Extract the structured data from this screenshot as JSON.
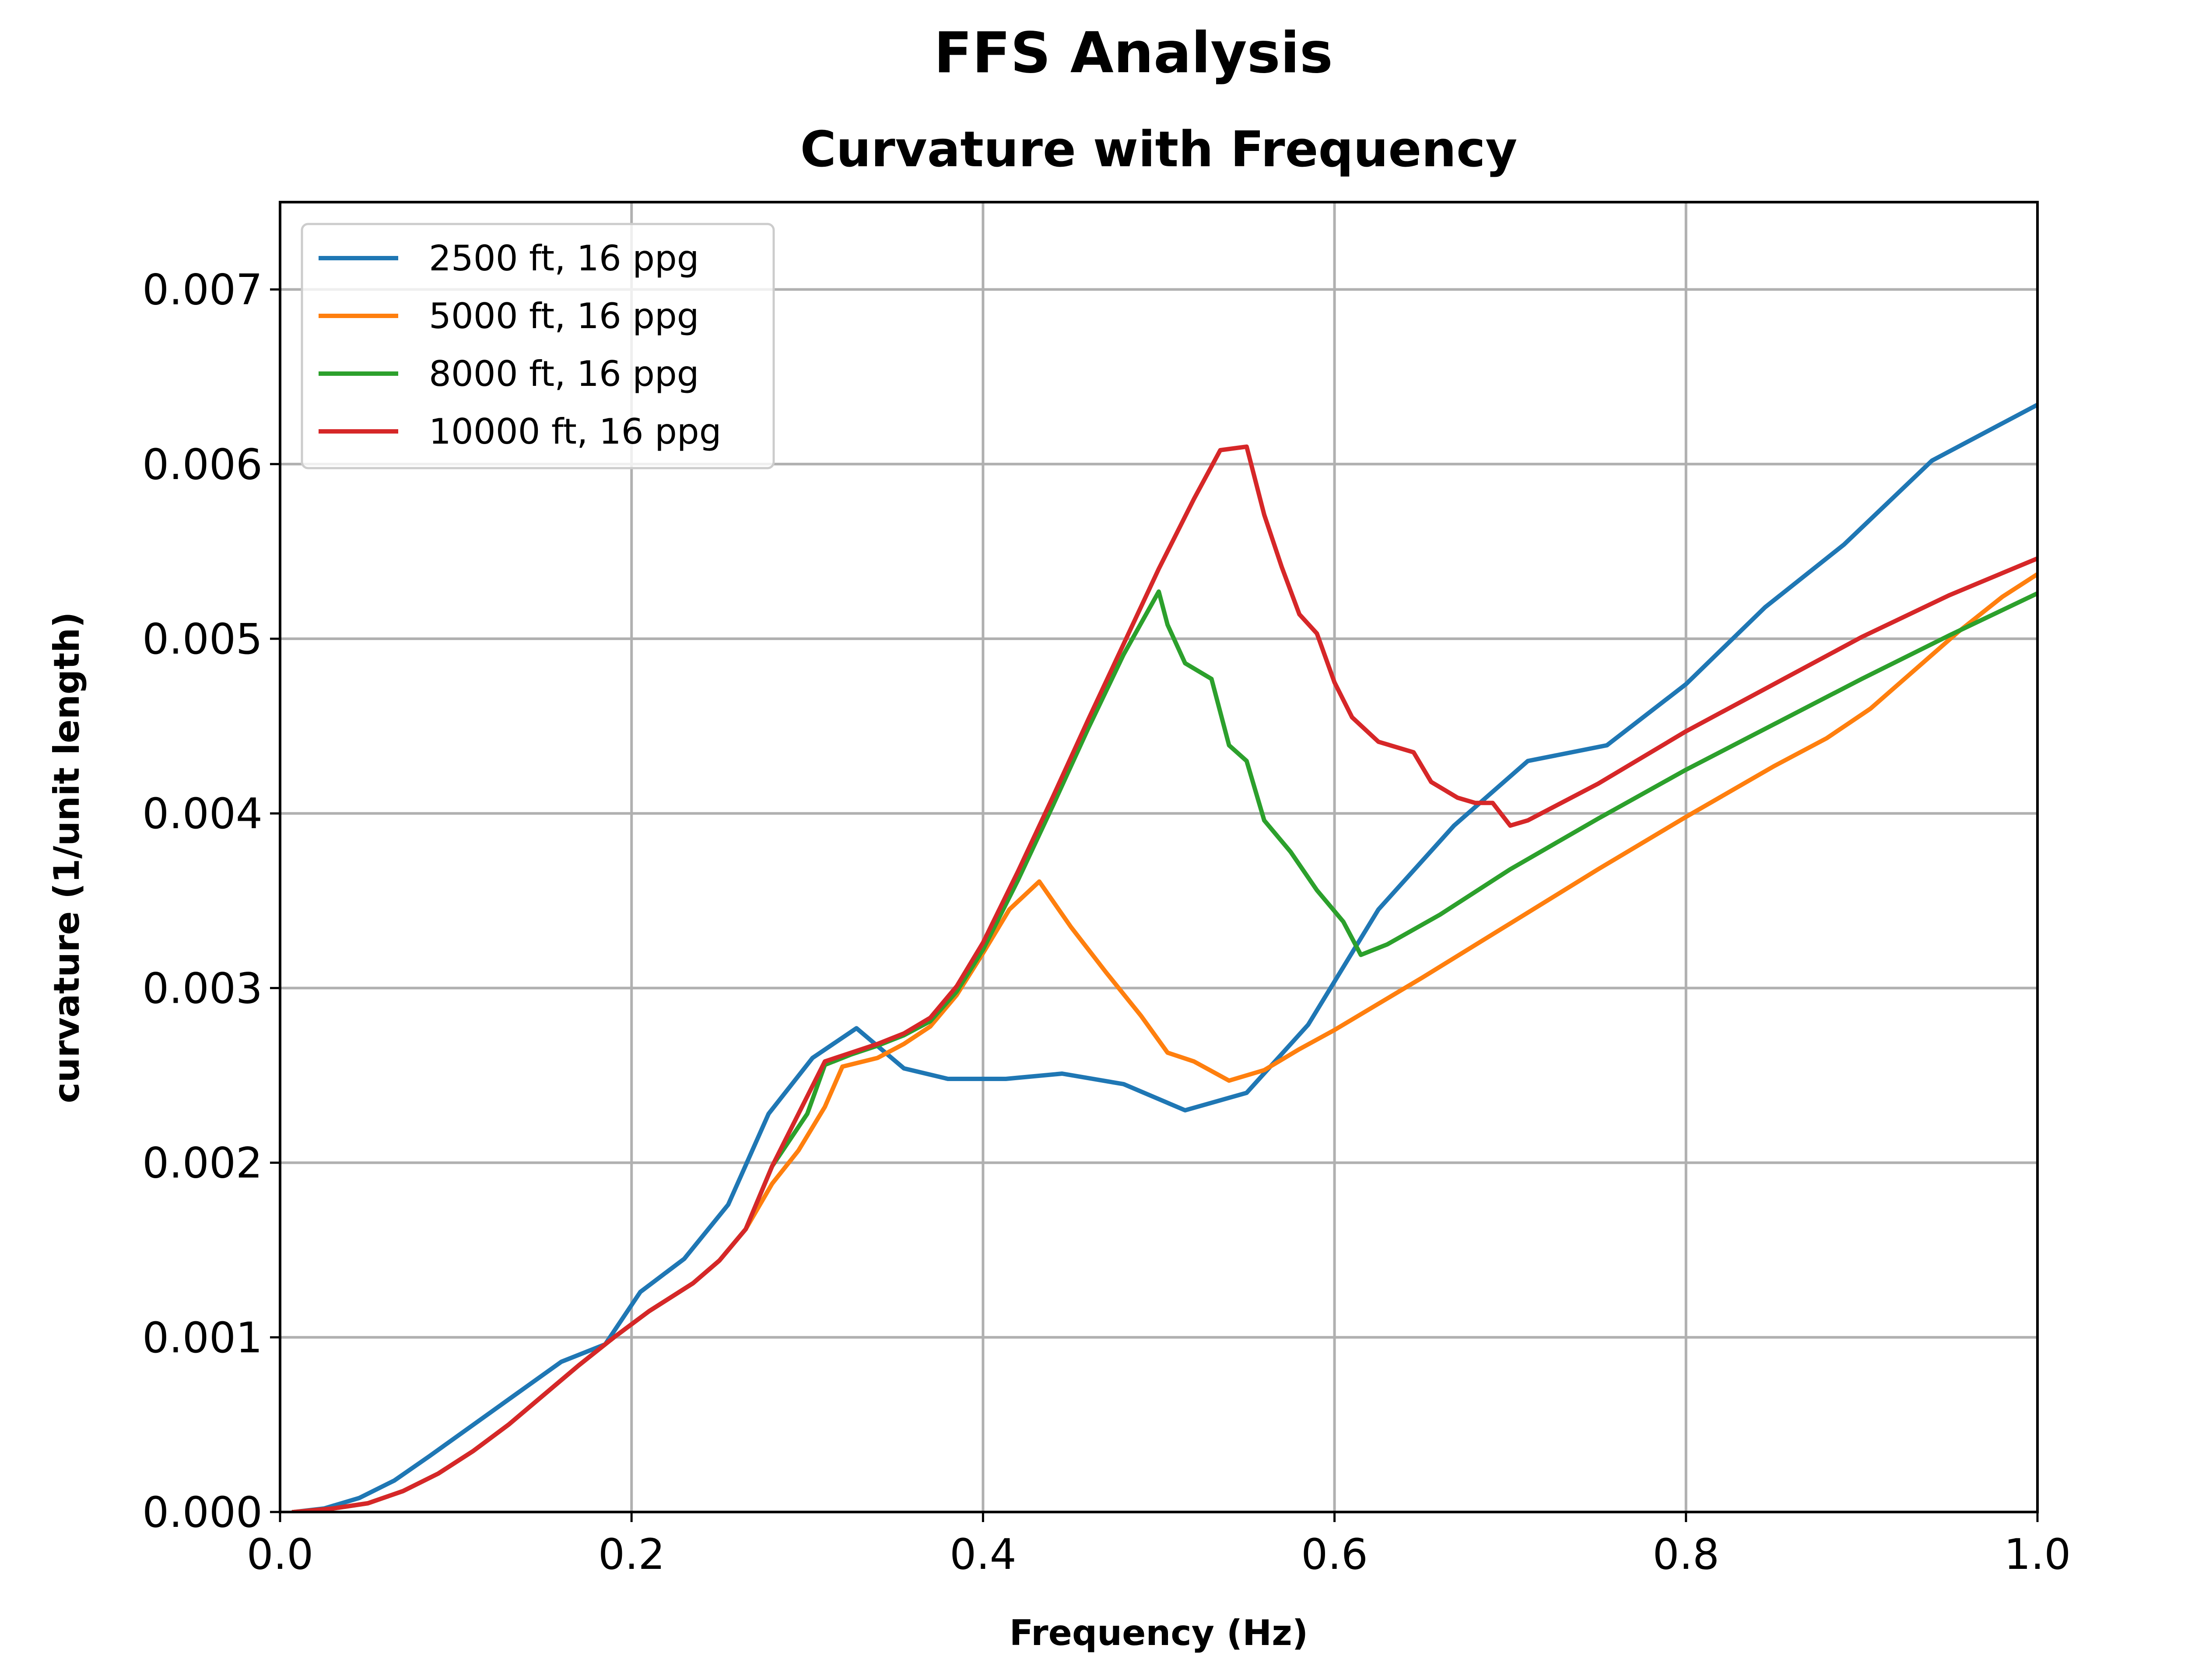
{
  "chart_data": {
    "type": "line",
    "suptitle": "FFS Analysis",
    "title": "Curvature with Frequency",
    "xlabel": "Frequency (Hz)",
    "ylabel": "curvature (1/unit length)",
    "xlim": [
      0.0,
      1.0
    ],
    "ylim": [
      0.0,
      0.0075
    ],
    "xticks": [
      "0.0",
      "0.2",
      "0.4",
      "0.6",
      "0.8",
      "1.0"
    ],
    "yticks": [
      "0.000",
      "0.001",
      "0.002",
      "0.003",
      "0.004",
      "0.005",
      "0.006",
      "0.007"
    ],
    "grid": true,
    "legend_position": "top-left",
    "series": [
      {
        "name": "2500 ft, 16 ppg",
        "color": "#1f77b4",
        "x": [
          0.008,
          0.025,
          0.045,
          0.065,
          0.085,
          0.11,
          0.135,
          0.16,
          0.185,
          0.205,
          0.23,
          0.255,
          0.278,
          0.303,
          0.328,
          0.355,
          0.38,
          0.413,
          0.445,
          0.48,
          0.515,
          0.55,
          0.585,
          0.625,
          0.668,
          0.71,
          0.755,
          0.8,
          0.845,
          0.89,
          0.94,
          1.0
        ],
        "y": [
          0.0,
          2e-05,
          8e-05,
          0.00018,
          0.00032,
          0.0005,
          0.00068,
          0.00086,
          0.00096,
          0.00126,
          0.00145,
          0.00176,
          0.00228,
          0.0026,
          0.00277,
          0.00254,
          0.00248,
          0.00248,
          0.00251,
          0.00245,
          0.0023,
          0.0024,
          0.00279,
          0.00345,
          0.00393,
          0.0043,
          0.00439,
          0.00474,
          0.00518,
          0.00554,
          0.00602,
          0.00634
        ]
      },
      {
        "name": "5000 ft, 16 ppg",
        "color": "#ff7f0e",
        "x": [
          0.008,
          0.03,
          0.05,
          0.07,
          0.09,
          0.11,
          0.13,
          0.15,
          0.17,
          0.19,
          0.21,
          0.235,
          0.25,
          0.265,
          0.28,
          0.295,
          0.31,
          0.32,
          0.34,
          0.355,
          0.37,
          0.385,
          0.4,
          0.415,
          0.432,
          0.45,
          0.47,
          0.49,
          0.505,
          0.52,
          0.54,
          0.56,
          0.58,
          0.6,
          0.65,
          0.7,
          0.75,
          0.8,
          0.85,
          0.88,
          0.905,
          0.93,
          0.955,
          0.98,
          1.0
        ],
        "y": [
          0.0,
          2e-05,
          5e-05,
          0.00012,
          0.00022,
          0.00035,
          0.0005,
          0.00067,
          0.00084,
          0.001,
          0.00115,
          0.00131,
          0.00144,
          0.00162,
          0.00188,
          0.00207,
          0.00232,
          0.00255,
          0.0026,
          0.00268,
          0.00278,
          0.00296,
          0.0032,
          0.00345,
          0.00361,
          0.00335,
          0.00309,
          0.00284,
          0.00263,
          0.00258,
          0.00247,
          0.00253,
          0.00265,
          0.00276,
          0.00306,
          0.00337,
          0.00368,
          0.00398,
          0.00427,
          0.00443,
          0.0046,
          0.00482,
          0.00504,
          0.00524,
          0.00537
        ]
      },
      {
        "name": "8000 ft, 16 ppg",
        "color": "#2ca02c",
        "x": [
          0.008,
          0.03,
          0.05,
          0.07,
          0.09,
          0.11,
          0.13,
          0.15,
          0.17,
          0.19,
          0.21,
          0.235,
          0.25,
          0.265,
          0.28,
          0.3,
          0.31,
          0.325,
          0.34,
          0.355,
          0.37,
          0.385,
          0.4,
          0.42,
          0.44,
          0.46,
          0.48,
          0.5,
          0.505,
          0.515,
          0.53,
          0.54,
          0.55,
          0.56,
          0.575,
          0.59,
          0.605,
          0.615,
          0.63,
          0.66,
          0.7,
          0.75,
          0.8,
          0.85,
          0.9,
          0.95,
          1.0
        ],
        "y": [
          0.0,
          2e-05,
          5e-05,
          0.00012,
          0.00022,
          0.00035,
          0.0005,
          0.00067,
          0.00084,
          0.001,
          0.00115,
          0.00131,
          0.00144,
          0.00162,
          0.00198,
          0.00228,
          0.00256,
          0.00262,
          0.00267,
          0.00273,
          0.00281,
          0.00298,
          0.00322,
          0.00362,
          0.00405,
          0.00449,
          0.00491,
          0.00527,
          0.00508,
          0.00486,
          0.00477,
          0.00439,
          0.0043,
          0.00396,
          0.00378,
          0.00356,
          0.00338,
          0.00319,
          0.00325,
          0.00342,
          0.00368,
          0.00397,
          0.00425,
          0.00451,
          0.00477,
          0.00502,
          0.00526
        ]
      },
      {
        "name": "10000 ft, 16 ppg",
        "color": "#d62728",
        "x": [
          0.008,
          0.03,
          0.05,
          0.07,
          0.09,
          0.11,
          0.13,
          0.15,
          0.17,
          0.19,
          0.21,
          0.235,
          0.25,
          0.265,
          0.28,
          0.3,
          0.31,
          0.325,
          0.34,
          0.355,
          0.37,
          0.385,
          0.4,
          0.42,
          0.44,
          0.46,
          0.48,
          0.5,
          0.52,
          0.535,
          0.55,
          0.56,
          0.57,
          0.58,
          0.59,
          0.6,
          0.61,
          0.625,
          0.645,
          0.655,
          0.67,
          0.68,
          0.69,
          0.7,
          0.71,
          0.75,
          0.8,
          0.85,
          0.9,
          0.95,
          1.0
        ],
        "y": [
          0.0,
          2e-05,
          5e-05,
          0.00012,
          0.00022,
          0.00035,
          0.0005,
          0.00067,
          0.00084,
          0.001,
          0.00115,
          0.00131,
          0.00144,
          0.00162,
          0.00198,
          0.00238,
          0.00258,
          0.00263,
          0.00268,
          0.00274,
          0.00283,
          0.00301,
          0.00326,
          0.00367,
          0.0041,
          0.00454,
          0.00497,
          0.0054,
          0.0058,
          0.00608,
          0.0061,
          0.00571,
          0.00541,
          0.00514,
          0.00503,
          0.00475,
          0.00455,
          0.00441,
          0.00435,
          0.00418,
          0.00409,
          0.00406,
          0.00406,
          0.00393,
          0.00396,
          0.00417,
          0.00447,
          0.00474,
          0.00501,
          0.00525,
          0.00546
        ]
      }
    ]
  }
}
